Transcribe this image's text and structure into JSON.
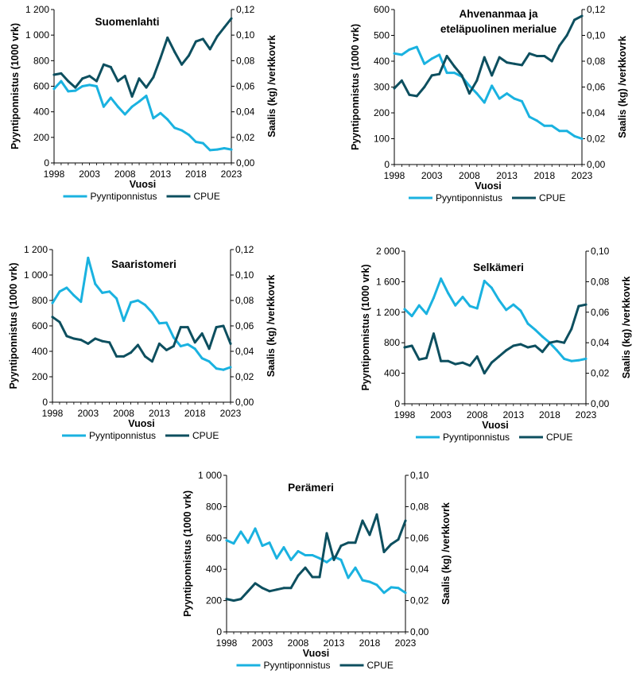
{
  "chart_data": [
    {
      "type": "line",
      "title": "Suomenlahti",
      "xlabel": "Vuosi",
      "ylabel": "Pyyntiponnistus  (1000 vrk)",
      "y2label": "Saalis (kg) /verkkovrk",
      "x": [
        1998,
        1999,
        2000,
        2001,
        2002,
        2003,
        2004,
        2005,
        2006,
        2007,
        2008,
        2009,
        2010,
        2011,
        2012,
        2013,
        2014,
        2015,
        2016,
        2017,
        2018,
        2019,
        2020,
        2021,
        2022,
        2023
      ],
      "xticks": [
        "1998",
        "2003",
        "2008",
        "2013",
        "2018",
        "2023"
      ],
      "ylim": [
        0,
        1200
      ],
      "yticks": [
        "0",
        "200",
        "400",
        "600",
        "800",
        "1 000",
        "1 200"
      ],
      "y2lim": [
        0,
        0.12
      ],
      "y2ticks": [
        "0,00",
        "0,02",
        "0,04",
        "0,06",
        "0,08",
        "0,10",
        "0,12"
      ],
      "series": [
        {
          "name": "Pyyntiponnistus",
          "axis": "left",
          "color": "#1ab2e0",
          "values": [
            580,
            640,
            560,
            565,
            600,
            610,
            600,
            440,
            510,
            440,
            380,
            440,
            480,
            525,
            350,
            390,
            340,
            275,
            255,
            220,
            165,
            155,
            100,
            105,
            115,
            105
          ]
        },
        {
          "name": "CPUE",
          "axis": "right",
          "color": "#0d4f5f",
          "values": [
            0.069,
            0.07,
            0.064,
            0.059,
            0.066,
            0.068,
            0.064,
            0.077,
            0.075,
            0.064,
            0.068,
            0.052,
            0.066,
            0.059,
            0.067,
            0.082,
            0.098,
            0.087,
            0.077,
            0.084,
            0.095,
            0.097,
            0.089,
            0.099,
            0.106,
            0.113
          ]
        }
      ]
    },
    {
      "type": "line",
      "title": "Ahvenanmaa ja eteläpuolinen merialue",
      "title_lines": [
        "Ahvenanmaa ja",
        "eteläpuolinen merialue"
      ],
      "xlabel": "Vuosi",
      "ylabel": "Pyyntiponnistus  (1000 vrk)",
      "y2label": "Saalis (kg) /verkkovrk",
      "x": [
        1998,
        1999,
        2000,
        2001,
        2002,
        2003,
        2004,
        2005,
        2006,
        2007,
        2008,
        2009,
        2010,
        2011,
        2012,
        2013,
        2014,
        2015,
        2016,
        2017,
        2018,
        2019,
        2020,
        2021,
        2022,
        2023
      ],
      "xticks": [
        "1998",
        "2003",
        "2008",
        "2013",
        "2018",
        "2023"
      ],
      "ylim": [
        0,
        600
      ],
      "yticks": [
        "0",
        "100",
        "200",
        "300",
        "400",
        "500",
        "600"
      ],
      "y2lim": [
        0,
        0.12
      ],
      "y2ticks": [
        "0,00",
        "0,02",
        "0,04",
        "0,06",
        "0,08",
        "0,10",
        "0,12"
      ],
      "series": [
        {
          "name": "Pyyntiponnistus",
          "axis": "left",
          "color": "#1ab2e0",
          "values": [
            430,
            425,
            445,
            455,
            390,
            410,
            425,
            355,
            355,
            340,
            305,
            275,
            240,
            305,
            255,
            275,
            255,
            245,
            185,
            170,
            150,
            150,
            130,
            130,
            110,
            100
          ]
        },
        {
          "name": "CPUE",
          "axis": "right",
          "color": "#0d4f5f",
          "values": [
            0.059,
            0.065,
            0.054,
            0.053,
            0.06,
            0.069,
            0.07,
            0.084,
            0.076,
            0.069,
            0.055,
            0.065,
            0.083,
            0.069,
            0.083,
            0.079,
            0.078,
            0.077,
            0.086,
            0.084,
            0.084,
            0.08,
            0.092,
            0.1,
            0.112,
            0.115
          ]
        }
      ]
    },
    {
      "type": "line",
      "title": "Saaristomeri",
      "xlabel": "Vuosi",
      "ylabel": "Pyyntiponnistus  (1000 vrk)",
      "y2label": "Saalis (kg) /verkkovrk",
      "x": [
        1998,
        1999,
        2000,
        2001,
        2002,
        2003,
        2004,
        2005,
        2006,
        2007,
        2008,
        2009,
        2010,
        2011,
        2012,
        2013,
        2014,
        2015,
        2016,
        2017,
        2018,
        2019,
        2020,
        2021,
        2022,
        2023
      ],
      "xticks": [
        "1998",
        "2003",
        "2008",
        "2013",
        "2018",
        "2023"
      ],
      "ylim": [
        0,
        1200
      ],
      "yticks": [
        "0",
        "200",
        "400",
        "600",
        "800",
        "1 000",
        "1 200"
      ],
      "y2lim": [
        0,
        0.12
      ],
      "y2ticks": [
        "0,00",
        "0,02",
        "0,04",
        "0,06",
        "0,08",
        "0,10",
        "0,12"
      ],
      "series": [
        {
          "name": "Pyyntiponnistus",
          "axis": "left",
          "color": "#1ab2e0",
          "values": [
            780,
            870,
            900,
            840,
            790,
            1135,
            930,
            860,
            870,
            815,
            640,
            785,
            800,
            765,
            705,
            620,
            625,
            510,
            440,
            455,
            420,
            345,
            320,
            265,
            255,
            275
          ]
        },
        {
          "name": "CPUE",
          "axis": "right",
          "color": "#0d4f5f",
          "values": [
            0.067,
            0.063,
            0.052,
            0.05,
            0.049,
            0.046,
            0.05,
            0.048,
            0.047,
            0.036,
            0.036,
            0.039,
            0.045,
            0.036,
            0.032,
            0.046,
            0.041,
            0.044,
            0.059,
            0.059,
            0.047,
            0.054,
            0.042,
            0.059,
            0.06,
            0.046
          ]
        }
      ]
    },
    {
      "type": "line",
      "title": "Selkämeri",
      "xlabel": "Vuosi",
      "ylabel": "Pyyntiponnistus  (1000 vrk)",
      "y2label": "Saalis (kg) /verkkovrk",
      "x": [
        1998,
        1999,
        2000,
        2001,
        2002,
        2003,
        2004,
        2005,
        2006,
        2007,
        2008,
        2009,
        2010,
        2011,
        2012,
        2013,
        2014,
        2015,
        2016,
        2017,
        2018,
        2019,
        2020,
        2021,
        2022,
        2023
      ],
      "xticks": [
        "1998",
        "2003",
        "2008",
        "2013",
        "2018",
        "2023"
      ],
      "ylim": [
        0,
        2000
      ],
      "yticks": [
        "0",
        "400",
        "800",
        "1 200",
        "1 600",
        "2 000"
      ],
      "y2lim": [
        0,
        0.1
      ],
      "y2ticks": [
        "0,00",
        "0,02",
        "0,04",
        "0,06",
        "0,08",
        "0,10"
      ],
      "series": [
        {
          "name": "Pyyntiponnistus",
          "axis": "left",
          "color": "#1ab2e0",
          "values": [
            1240,
            1150,
            1290,
            1180,
            1390,
            1640,
            1450,
            1290,
            1400,
            1280,
            1250,
            1610,
            1520,
            1360,
            1230,
            1300,
            1220,
            1050,
            970,
            880,
            800,
            700,
            590,
            560,
            570,
            590
          ]
        },
        {
          "name": "CPUE",
          "axis": "right",
          "color": "#0d4f5f",
          "values": [
            0.037,
            0.038,
            0.029,
            0.03,
            0.046,
            0.028,
            0.028,
            0.026,
            0.027,
            0.025,
            0.031,
            0.02,
            0.027,
            0.031,
            0.035,
            0.038,
            0.039,
            0.037,
            0.038,
            0.034,
            0.04,
            0.041,
            0.04,
            0.049,
            0.064,
            0.065
          ]
        }
      ]
    },
    {
      "type": "line",
      "title": "Perämeri",
      "xlabel": "Vuosi",
      "ylabel": "Pyyntiponnistus  (1000 vrk)",
      "y2label": "Saalis (kg) /verkkovrk",
      "x": [
        1998,
        1999,
        2000,
        2001,
        2002,
        2003,
        2004,
        2005,
        2006,
        2007,
        2008,
        2009,
        2010,
        2011,
        2012,
        2013,
        2014,
        2015,
        2016,
        2017,
        2018,
        2019,
        2020,
        2021,
        2022,
        2023
      ],
      "xticks": [
        "1998",
        "2003",
        "2008",
        "2013",
        "2018",
        "2023"
      ],
      "ylim": [
        0,
        1000
      ],
      "yticks": [
        "0",
        "200",
        "400",
        "600",
        "800",
        "1 000"
      ],
      "y2lim": [
        0,
        0.1
      ],
      "y2ticks": [
        "0,00",
        "0,02",
        "0,04",
        "0,06",
        "0,08",
        "0,10"
      ],
      "series": [
        {
          "name": "Pyyntiponnistus",
          "axis": "left",
          "color": "#1ab2e0",
          "values": [
            585,
            565,
            640,
            570,
            660,
            550,
            570,
            470,
            540,
            460,
            515,
            490,
            490,
            470,
            445,
            480,
            460,
            345,
            410,
            330,
            320,
            300,
            250,
            285,
            280,
            250
          ]
        },
        {
          "name": "CPUE",
          "axis": "right",
          "color": "#0d4f5f",
          "values": [
            0.021,
            0.02,
            0.021,
            0.026,
            0.031,
            0.028,
            0.026,
            0.027,
            0.028,
            0.028,
            0.036,
            0.041,
            0.035,
            0.035,
            0.063,
            0.046,
            0.055,
            0.057,
            0.057,
            0.071,
            0.062,
            0.075,
            0.051,
            0.056,
            0.059,
            0.071
          ]
        }
      ]
    }
  ]
}
